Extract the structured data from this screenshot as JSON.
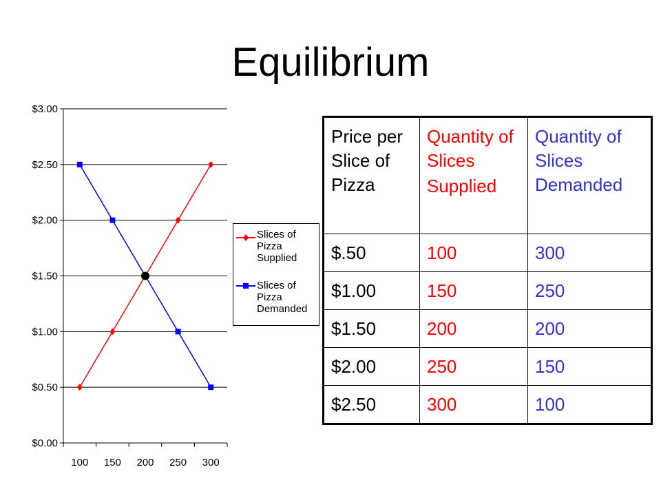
{
  "slide": {
    "title": "Equilibrium"
  },
  "chart_data": {
    "type": "line",
    "x": [
      100,
      150,
      200,
      250,
      300
    ],
    "x_tick_labels": [
      "100",
      "150",
      "200",
      "250",
      "300"
    ],
    "y_tick_labels": [
      "$0.00",
      "$0.50",
      "$1.00",
      "$1.50",
      "$2.00",
      "$2.50",
      "$3.00"
    ],
    "ylim": [
      0,
      3
    ],
    "grid": "horizontal",
    "legend_position": "right",
    "series": [
      {
        "name": "Slices of Pizza Supplied",
        "name_lines": [
          "Slices of",
          "Pizza",
          "Supplied"
        ],
        "color": "#ff0000",
        "marker": "diamond",
        "points": [
          [
            100,
            0.5
          ],
          [
            150,
            1.0
          ],
          [
            200,
            1.5
          ],
          [
            250,
            2.0
          ],
          [
            300,
            2.5
          ]
        ]
      },
      {
        "name": "Slices of Pizza Demanded",
        "name_lines": [
          "Slices of",
          "Pizza",
          "Demanded"
        ],
        "color": "#0000ff",
        "marker": "square",
        "points": [
          [
            100,
            2.5
          ],
          [
            150,
            2.0
          ],
          [
            200,
            1.5
          ],
          [
            250,
            1.0
          ],
          [
            300,
            0.5
          ]
        ]
      }
    ],
    "equilibrium_point": {
      "x": 200,
      "y": 1.5,
      "color": "#000000"
    }
  },
  "table": {
    "headers": {
      "price": "Price per Slice of Pizza",
      "supplied_a": "Quantity of Slices",
      "supplied_b": "Supplied",
      "demanded": "Quantity of Slices Demanded"
    },
    "colors": {
      "price": "#000000",
      "supplied": "#ff0000",
      "demanded": "#3333cc"
    },
    "rows": [
      {
        "price": "$.50",
        "supplied": "100",
        "demanded": "300"
      },
      {
        "price": "$1.00",
        "supplied": "150",
        "demanded": "250"
      },
      {
        "price": "$1.50",
        "supplied": "200",
        "demanded": "200"
      },
      {
        "price": "$2.00",
        "supplied": "250",
        "demanded": "150"
      },
      {
        "price": "$2.50",
        "supplied": "300",
        "demanded": "100"
      }
    ]
  }
}
